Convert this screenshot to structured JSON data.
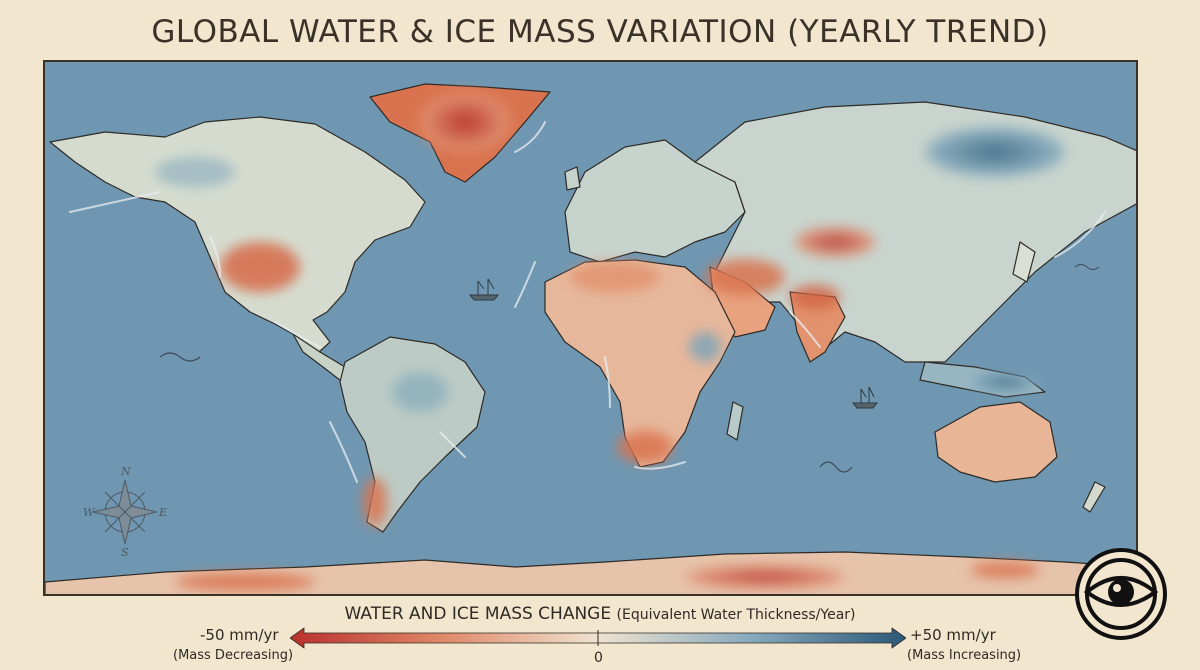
{
  "title": "GLOBAL WATER & ICE MASS VARIATION (YEARLY TREND)",
  "legend": {
    "title": "WATER AND ICE MASS CHANGE",
    "subtitle": "(Equivalent Water Thickness/Year)",
    "min_label": "-50 mm/yr",
    "min_note": "(Mass Decreasing)",
    "max_label": "+50 mm/yr",
    "max_note": "(Mass Increasing)",
    "mid_label": "0",
    "color_min": "#b8302b",
    "color_mid": "#efe3d0",
    "color_max": "#2c5877"
  },
  "compass": {
    "n": "N",
    "s": "S",
    "e": "E",
    "w": "W"
  },
  "colors": {
    "ocean": "#6f97b1",
    "land_neutral": "#d8ddd1",
    "loss": "#d9734f",
    "strong_loss": "#b8302b",
    "gain": "#5f8ea8",
    "strong_gain": "#2f6284"
  },
  "icons": [
    "compass-rose-icon",
    "ship-icon",
    "sea-creature-icon",
    "eye-logo-icon"
  ]
}
